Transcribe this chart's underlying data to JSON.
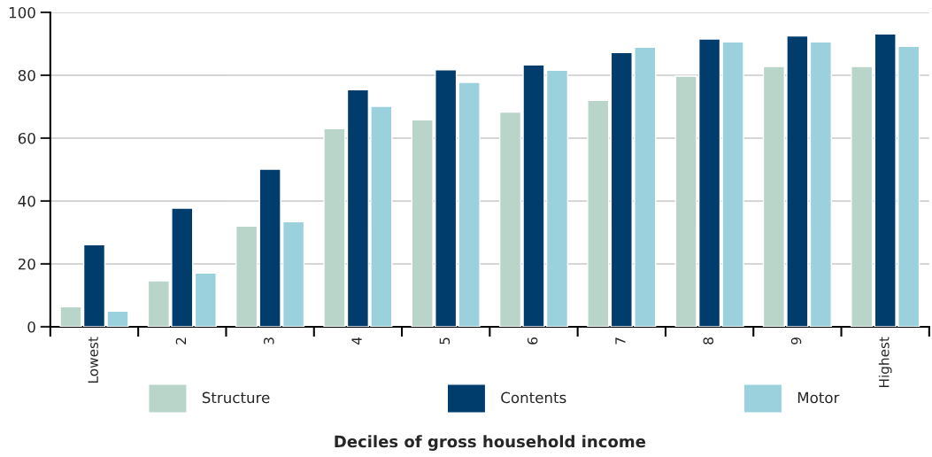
{
  "chart_data": {
    "type": "bar",
    "xlabel": "Deciles of gross household income",
    "categories": [
      "Lowest",
      "2",
      "3",
      "4",
      "5",
      "6",
      "7",
      "8",
      "9",
      "Highest"
    ],
    "series": [
      {
        "name": "Structure",
        "color": "#b9d4c9",
        "values": [
          6.4,
          14.6,
          32.0,
          63.0,
          65.8,
          68.3,
          72.0,
          79.7,
          82.8,
          82.8
        ]
      },
      {
        "name": "Contents",
        "color": "#003c6c",
        "values": [
          26.1,
          37.7,
          50.1,
          75.4,
          81.7,
          83.3,
          87.2,
          91.5,
          92.5,
          93.1
        ]
      },
      {
        "name": "Motor",
        "color": "#9bd1dc",
        "values": [
          5.0,
          17.1,
          33.4,
          70.1,
          77.7,
          81.6,
          88.9,
          90.6,
          90.6,
          89.2
        ]
      }
    ],
    "ylim": [
      0,
      100
    ],
    "yticks": [
      0,
      20,
      40,
      60,
      80,
      100
    ],
    "grid": "y",
    "legend": "bottom"
  }
}
